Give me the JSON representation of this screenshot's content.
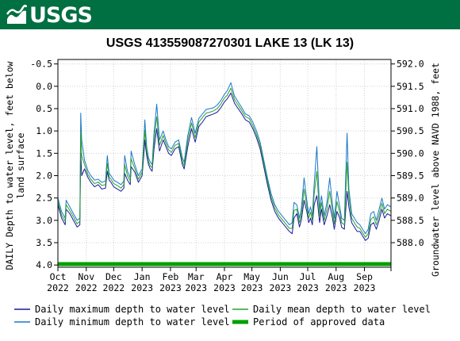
{
  "header": {
    "agency": "USGS"
  },
  "colors": {
    "banner": "#006f41",
    "max_line": "#1a1aa0",
    "min_line": "#1a78c8",
    "mean_line": "#2ca02c",
    "approved": "#00a000"
  },
  "chart_data": {
    "type": "line",
    "title": "USGS 413559087270301 LAKE 13 (LK 13)",
    "ylabel": "DAILY Depth to water level, feet below land surface",
    "ylabel_lines": [
      "DAILY Depth to water level, feet below",
      "land surface"
    ],
    "y2label": "Groundwater level above NAVD 1988, feet",
    "ylim": [
      -0.6,
      4.05
    ],
    "y_inverted": true,
    "y_ticks": [
      "-0.5",
      "0.0",
      "0.5",
      "1.0",
      "1.5",
      "2.0",
      "2.5",
      "3.0",
      "3.5",
      "4.0"
    ],
    "y2_ticks": [
      "592.0",
      "591.5",
      "591.0",
      "590.5",
      "590.0",
      "589.5",
      "589.0",
      "588.5",
      "588.0"
    ],
    "x_ticks": [
      {
        "month": "Oct",
        "year": "2022"
      },
      {
        "month": "Nov",
        "year": "2022"
      },
      {
        "month": "Dec",
        "year": "2022"
      },
      {
        "month": "Jan",
        "year": "2023"
      },
      {
        "month": "Feb",
        "year": "2023"
      },
      {
        "month": "Mar",
        "year": "2023"
      },
      {
        "month": "Apr",
        "year": "2023"
      },
      {
        "month": "May",
        "year": "2023"
      },
      {
        "month": "Jun",
        "year": "2023"
      },
      {
        "month": "Jul",
        "year": "2023"
      },
      {
        "month": "Aug",
        "year": "2023"
      },
      {
        "month": "Sep",
        "year": "2023"
      }
    ],
    "x_start": "2022-10-01",
    "x_end": "2023-09-30",
    "series": [
      {
        "name": "Daily maximum depth to water level",
        "dates": [
          "2022-10-01",
          "2022-10-05",
          "2022-10-09",
          "2022-10-10",
          "2022-10-14",
          "2022-10-18",
          "2022-10-22",
          "2022-10-25",
          "2022-10-26",
          "2022-10-27",
          "2022-10-30",
          "2022-11-03",
          "2022-11-06",
          "2022-11-10",
          "2022-11-14",
          "2022-11-18",
          "2022-11-22",
          "2022-11-24",
          "2022-11-26",
          "2022-11-28",
          "2022-12-01",
          "2022-12-05",
          "2022-12-09",
          "2022-12-12",
          "2022-12-13",
          "2022-12-16",
          "2022-12-19",
          "2022-12-20",
          "2022-12-24",
          "2022-12-28",
          "2023-01-01",
          "2023-01-03",
          "2023-01-04",
          "2023-01-06",
          "2023-01-08",
          "2023-01-10",
          "2023-01-12",
          "2023-01-14",
          "2023-01-17",
          "2023-01-20",
          "2023-01-24",
          "2023-01-27",
          "2023-01-30",
          "2023-02-02",
          "2023-02-06",
          "2023-02-10",
          "2023-02-14",
          "2023-02-16",
          "2023-02-20",
          "2023-02-24",
          "2023-02-28",
          "2023-03-04",
          "2023-03-08",
          "2023-03-12",
          "2023-03-16",
          "2023-03-20",
          "2023-03-24",
          "2023-03-28",
          "2023-04-01",
          "2023-04-04",
          "2023-04-08",
          "2023-04-12",
          "2023-04-16",
          "2023-04-20",
          "2023-04-24",
          "2023-04-28",
          "2023-05-02",
          "2023-05-06",
          "2023-05-10",
          "2023-05-14",
          "2023-05-18",
          "2023-05-22",
          "2023-05-26",
          "2023-05-30",
          "2023-06-03",
          "2023-06-07",
          "2023-06-11",
          "2023-06-14",
          "2023-06-16",
          "2023-06-19",
          "2023-06-22",
          "2023-06-24",
          "2023-06-27",
          "2023-06-30",
          "2023-07-02",
          "2023-07-04",
          "2023-07-06",
          "2023-07-08",
          "2023-07-11",
          "2023-07-14",
          "2023-07-16",
          "2023-07-19",
          "2023-07-22",
          "2023-07-25",
          "2023-07-28",
          "2023-07-30",
          "2023-08-02",
          "2023-08-05",
          "2023-08-07",
          "2023-08-10",
          "2023-08-13",
          "2023-08-15",
          "2023-08-18",
          "2023-08-21",
          "2023-08-24",
          "2023-08-27",
          "2023-08-30",
          "2023-09-02",
          "2023-09-05",
          "2023-09-08",
          "2023-09-11",
          "2023-09-14",
          "2023-09-17",
          "2023-09-20",
          "2023-09-23",
          "2023-09-26",
          "2023-09-30"
        ],
        "values": [
          2.65,
          2.95,
          3.1,
          2.75,
          2.85,
          3.0,
          3.15,
          3.1,
          1.5,
          2.0,
          1.85,
          2.05,
          2.15,
          2.25,
          2.2,
          2.3,
          2.28,
          1.9,
          2.1,
          2.15,
          2.25,
          2.3,
          2.35,
          2.28,
          1.95,
          2.1,
          2.2,
          1.8,
          1.92,
          2.15,
          2.0,
          1.5,
          1.2,
          1.55,
          1.75,
          1.85,
          1.9,
          1.4,
          0.95,
          1.45,
          1.2,
          1.35,
          1.5,
          1.55,
          1.4,
          1.35,
          1.75,
          1.85,
          1.35,
          0.95,
          1.25,
          0.9,
          0.8,
          0.68,
          0.65,
          0.62,
          0.58,
          0.48,
          0.35,
          0.28,
          0.15,
          0.38,
          0.5,
          0.62,
          0.75,
          0.8,
          0.95,
          1.15,
          1.4,
          1.8,
          2.2,
          2.55,
          2.8,
          2.95,
          3.05,
          3.15,
          3.25,
          3.3,
          2.95,
          2.85,
          3.15,
          3.0,
          2.55,
          2.8,
          3.05,
          2.95,
          3.1,
          2.65,
          2.45,
          3.05,
          2.75,
          3.1,
          2.9,
          2.65,
          2.95,
          3.2,
          2.8,
          2.95,
          3.15,
          3.2,
          2.35,
          2.7,
          3.05,
          3.15,
          3.25,
          3.25,
          3.35,
          3.45,
          3.4,
          3.1,
          3.05,
          3.2,
          3.0,
          2.75,
          2.95,
          2.85,
          2.9
        ]
      },
      {
        "name": "Daily minimum depth to water level",
        "dates": [
          "2022-10-01",
          "2022-10-05",
          "2022-10-09",
          "2022-10-10",
          "2022-10-14",
          "2022-10-18",
          "2022-10-22",
          "2022-10-25",
          "2022-10-26",
          "2022-10-27",
          "2022-10-30",
          "2022-11-03",
          "2022-11-06",
          "2022-11-10",
          "2022-11-14",
          "2022-11-18",
          "2022-11-22",
          "2022-11-24",
          "2022-11-26",
          "2022-11-28",
          "2022-12-01",
          "2022-12-05",
          "2022-12-09",
          "2022-12-12",
          "2022-12-13",
          "2022-12-16",
          "2022-12-19",
          "2022-12-20",
          "2022-12-24",
          "2022-12-28",
          "2023-01-01",
          "2023-01-03",
          "2023-01-04",
          "2023-01-06",
          "2023-01-08",
          "2023-01-10",
          "2023-01-12",
          "2023-01-14",
          "2023-01-17",
          "2023-01-20",
          "2023-01-24",
          "2023-01-27",
          "2023-01-30",
          "2023-02-02",
          "2023-02-06",
          "2023-02-10",
          "2023-02-14",
          "2023-02-16",
          "2023-02-20",
          "2023-02-24",
          "2023-02-28",
          "2023-03-04",
          "2023-03-08",
          "2023-03-12",
          "2023-03-16",
          "2023-03-20",
          "2023-03-24",
          "2023-03-28",
          "2023-04-01",
          "2023-04-04",
          "2023-04-08",
          "2023-04-12",
          "2023-04-16",
          "2023-04-20",
          "2023-04-24",
          "2023-04-28",
          "2023-05-02",
          "2023-05-06",
          "2023-05-10",
          "2023-05-14",
          "2023-05-18",
          "2023-05-22",
          "2023-05-26",
          "2023-05-30",
          "2023-06-03",
          "2023-06-07",
          "2023-06-11",
          "2023-06-14",
          "2023-06-16",
          "2023-06-19",
          "2023-06-22",
          "2023-06-24",
          "2023-06-27",
          "2023-06-30",
          "2023-07-02",
          "2023-07-04",
          "2023-07-06",
          "2023-07-08",
          "2023-07-11",
          "2023-07-14",
          "2023-07-16",
          "2023-07-19",
          "2023-07-22",
          "2023-07-25",
          "2023-07-28",
          "2023-07-30",
          "2023-08-02",
          "2023-08-05",
          "2023-08-07",
          "2023-08-10",
          "2023-08-13",
          "2023-08-15",
          "2023-08-18",
          "2023-08-21",
          "2023-08-24",
          "2023-08-27",
          "2023-08-30",
          "2023-09-02",
          "2023-09-05",
          "2023-09-08",
          "2023-09-11",
          "2023-09-14",
          "2023-09-17",
          "2023-09-20",
          "2023-09-23",
          "2023-09-26",
          "2023-09-30"
        ],
        "values": [
          2.5,
          2.8,
          2.95,
          2.55,
          2.7,
          2.85,
          3.0,
          2.95,
          0.6,
          1.2,
          1.65,
          1.9,
          2.0,
          2.1,
          2.08,
          2.15,
          2.12,
          1.55,
          1.95,
          2.0,
          2.1,
          2.15,
          2.2,
          2.12,
          1.55,
          1.9,
          2.05,
          1.45,
          1.75,
          2.0,
          1.85,
          1.15,
          0.75,
          1.35,
          1.6,
          1.7,
          1.75,
          1.05,
          0.4,
          1.2,
          1.0,
          1.2,
          1.35,
          1.4,
          1.25,
          1.2,
          1.6,
          1.7,
          1.1,
          0.7,
          1.05,
          0.72,
          0.62,
          0.52,
          0.5,
          0.48,
          0.42,
          0.32,
          0.18,
          0.1,
          -0.08,
          0.22,
          0.35,
          0.48,
          0.62,
          0.66,
          0.8,
          1.0,
          1.25,
          1.65,
          2.05,
          2.4,
          2.65,
          2.8,
          2.9,
          3.0,
          3.1,
          3.05,
          2.6,
          2.65,
          2.95,
          2.75,
          2.05,
          2.55,
          2.85,
          2.7,
          2.9,
          2.2,
          1.35,
          2.75,
          2.45,
          2.9,
          2.6,
          2.05,
          2.65,
          2.95,
          2.35,
          2.7,
          2.95,
          3.0,
          1.05,
          2.3,
          2.85,
          2.95,
          3.05,
          3.1,
          3.2,
          3.3,
          3.2,
          2.85,
          2.8,
          3.0,
          2.75,
          2.5,
          2.75,
          2.65,
          2.7
        ]
      },
      {
        "name": "Daily mean depth to water level",
        "dates": [
          "2022-10-01",
          "2022-10-05",
          "2022-10-09",
          "2022-10-10",
          "2022-10-14",
          "2022-10-18",
          "2022-10-22",
          "2022-10-25",
          "2022-10-26",
          "2022-10-27",
          "2022-10-30",
          "2022-11-03",
          "2022-11-06",
          "2022-11-10",
          "2022-11-14",
          "2022-11-18",
          "2022-11-22",
          "2022-11-24",
          "2022-11-26",
          "2022-11-28",
          "2022-12-01",
          "2022-12-05",
          "2022-12-09",
          "2022-12-12",
          "2022-12-13",
          "2022-12-16",
          "2022-12-19",
          "2022-12-20",
          "2022-12-24",
          "2022-12-28",
          "2023-01-01",
          "2023-01-03",
          "2023-01-04",
          "2023-01-06",
          "2023-01-08",
          "2023-01-10",
          "2023-01-12",
          "2023-01-14",
          "2023-01-17",
          "2023-01-20",
          "2023-01-24",
          "2023-01-27",
          "2023-01-30",
          "2023-02-02",
          "2023-02-06",
          "2023-02-10",
          "2023-02-14",
          "2023-02-16",
          "2023-02-20",
          "2023-02-24",
          "2023-02-28",
          "2023-03-04",
          "2023-03-08",
          "2023-03-12",
          "2023-03-16",
          "2023-03-20",
          "2023-03-24",
          "2023-03-28",
          "2023-04-01",
          "2023-04-04",
          "2023-04-08",
          "2023-04-12",
          "2023-04-16",
          "2023-04-20",
          "2023-04-24",
          "2023-04-28",
          "2023-05-02",
          "2023-05-06",
          "2023-05-10",
          "2023-05-14",
          "2023-05-18",
          "2023-05-22",
          "2023-05-26",
          "2023-05-30",
          "2023-06-03",
          "2023-06-07",
          "2023-06-11",
          "2023-06-14",
          "2023-06-16",
          "2023-06-19",
          "2023-06-22",
          "2023-06-24",
          "2023-06-27",
          "2023-06-30",
          "2023-07-02",
          "2023-07-04",
          "2023-07-06",
          "2023-07-08",
          "2023-07-11",
          "2023-07-14",
          "2023-07-16",
          "2023-07-19",
          "2023-07-22",
          "2023-07-25",
          "2023-07-28",
          "2023-07-30",
          "2023-08-02",
          "2023-08-05",
          "2023-08-07",
          "2023-08-10",
          "2023-08-13",
          "2023-08-15",
          "2023-08-18",
          "2023-08-21",
          "2023-08-24",
          "2023-08-27",
          "2023-08-30",
          "2023-09-02",
          "2023-09-05",
          "2023-09-08",
          "2023-09-11",
          "2023-09-14",
          "2023-09-17",
          "2023-09-20",
          "2023-09-23",
          "2023-09-26",
          "2023-09-30"
        ],
        "values": [
          2.58,
          2.88,
          3.02,
          2.65,
          2.78,
          2.92,
          3.08,
          3.02,
          1.0,
          1.55,
          1.75,
          1.98,
          2.08,
          2.18,
          2.14,
          2.22,
          2.2,
          1.72,
          2.02,
          2.08,
          2.18,
          2.22,
          2.28,
          2.2,
          1.75,
          2.0,
          2.12,
          1.62,
          1.84,
          2.08,
          1.92,
          1.32,
          0.98,
          1.45,
          1.68,
          1.78,
          1.82,
          1.22,
          0.68,
          1.32,
          1.1,
          1.28,
          1.42,
          1.48,
          1.32,
          1.28,
          1.68,
          1.78,
          1.22,
          0.82,
          1.15,
          0.8,
          0.7,
          0.6,
          0.58,
          0.55,
          0.5,
          0.4,
          0.26,
          0.2,
          0.04,
          0.3,
          0.42,
          0.55,
          0.68,
          0.72,
          0.88,
          1.08,
          1.32,
          1.72,
          2.12,
          2.48,
          2.72,
          2.88,
          2.98,
          3.08,
          3.18,
          3.18,
          2.78,
          2.75,
          3.05,
          2.88,
          2.3,
          2.68,
          2.95,
          2.82,
          3.0,
          2.42,
          1.9,
          2.9,
          2.6,
          3.0,
          2.75,
          2.35,
          2.8,
          3.08,
          2.58,
          2.82,
          3.05,
          3.1,
          1.7,
          2.5,
          2.95,
          3.05,
          3.15,
          3.18,
          3.28,
          3.38,
          3.3,
          2.98,
          2.92,
          3.1,
          2.88,
          2.62,
          2.85,
          2.75,
          2.8
        ]
      }
    ],
    "legend": [
      {
        "label": "Daily maximum depth to water level",
        "color": "#1a1aa0",
        "kind": "line"
      },
      {
        "label": "Daily mean depth to water level",
        "color": "#2ca02c",
        "kind": "line"
      },
      {
        "label": "Daily minimum depth to water level",
        "color": "#1a78c8",
        "kind": "line"
      },
      {
        "label": "Period of approved data",
        "color": "#00a000",
        "kind": "bar"
      }
    ],
    "approved_period": {
      "start": "2022-10-01",
      "end": "2023-09-30",
      "depth": 3.98
    },
    "legend_position": "bottom"
  }
}
